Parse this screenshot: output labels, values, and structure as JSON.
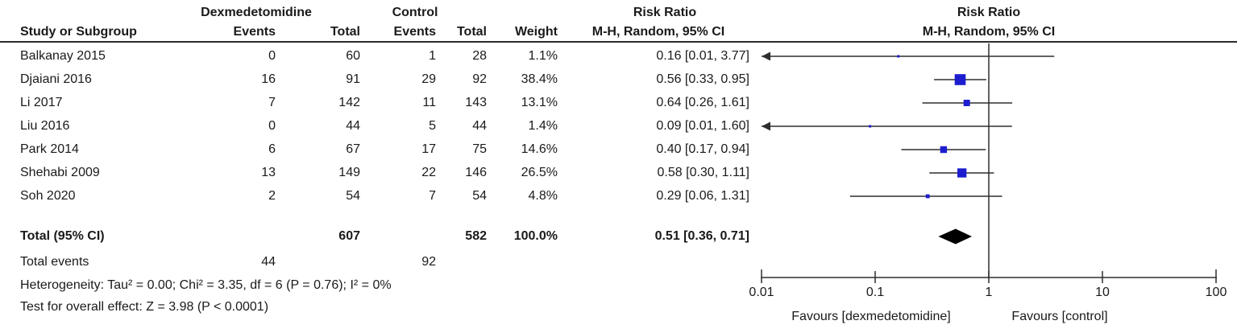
{
  "header": {
    "group_dex": "Dexmedetomidine",
    "group_ctrl": "Control",
    "risk_ratio_text_col": "Risk Ratio",
    "risk_ratio_plot_col": "Risk Ratio",
    "study": "Study or Subgroup",
    "events1": "Events",
    "total1": "Total",
    "events2": "Events",
    "total2": "Total",
    "weight": "Weight",
    "mh_text_col": "M-H, Random, 95% CI",
    "mh_plot_col": "M-H, Random, 95% CI"
  },
  "rows": [
    {
      "study": "Balkanay 2015",
      "e1": "0",
      "t1": "60",
      "e2": "1",
      "t2": "28",
      "weight": "1.1%",
      "ci_text": "0.16 [0.01, 3.77]"
    },
    {
      "study": "Djaiani 2016",
      "e1": "16",
      "t1": "91",
      "e2": "29",
      "t2": "92",
      "weight": "38.4%",
      "ci_text": "0.56 [0.33, 0.95]"
    },
    {
      "study": "Li 2017",
      "e1": "7",
      "t1": "142",
      "e2": "11",
      "t2": "143",
      "weight": "13.1%",
      "ci_text": "0.64 [0.26, 1.61]"
    },
    {
      "study": "Liu 2016",
      "e1": "0",
      "t1": "44",
      "e2": "5",
      "t2": "44",
      "weight": "1.4%",
      "ci_text": "0.09 [0.01, 1.60]"
    },
    {
      "study": "Park 2014",
      "e1": "6",
      "t1": "67",
      "e2": "17",
      "t2": "75",
      "weight": "14.6%",
      "ci_text": "0.40 [0.17, 0.94]"
    },
    {
      "study": "Shehabi 2009",
      "e1": "13",
      "t1": "149",
      "e2": "22",
      "t2": "146",
      "weight": "26.5%",
      "ci_text": "0.58 [0.30, 1.11]"
    },
    {
      "study": "Soh 2020",
      "e1": "2",
      "t1": "54",
      "e2": "7",
      "t2": "54",
      "weight": "4.8%",
      "ci_text": "0.29 [0.06, 1.31]"
    }
  ],
  "total_row": {
    "label": "Total (95% CI)",
    "t1": "607",
    "t2": "582",
    "weight": "100.0%",
    "ci_text": "0.51 [0.36, 0.71]"
  },
  "total_events": {
    "label": "Total events",
    "e1": "44",
    "e2": "92"
  },
  "footer": {
    "heterogeneity": "Heterogeneity: Tau² = 0.00; Chi² = 3.35, df = 6 (P = 0.76); I² = 0%",
    "overall_effect": "Test for overall effect: Z = 3.98 (P < 0.0001)"
  },
  "chart_data": {
    "type": "forest",
    "effect_measure": "Risk Ratio, M-H, Random, 95% CI",
    "x_axis": {
      "scale": "log",
      "ticks": [
        0.01,
        0.1,
        1,
        10,
        100
      ],
      "tick_labels": [
        "0.01",
        "0.1",
        "1",
        "10",
        "100"
      ],
      "reference_line": 1,
      "favours_left": "Favours [dexmedetomidine]",
      "favours_right": "Favours [control]"
    },
    "studies": [
      {
        "name": "Balkanay 2015",
        "rr": 0.16,
        "ci": [
          0.01,
          3.77
        ],
        "weight_pct": 1.1,
        "arrow_low": true
      },
      {
        "name": "Djaiani 2016",
        "rr": 0.56,
        "ci": [
          0.33,
          0.95
        ],
        "weight_pct": 38.4,
        "arrow_low": false
      },
      {
        "name": "Li 2017",
        "rr": 0.64,
        "ci": [
          0.26,
          1.61
        ],
        "weight_pct": 13.1,
        "arrow_low": false
      },
      {
        "name": "Liu 2016",
        "rr": 0.09,
        "ci": [
          0.01,
          1.6
        ],
        "weight_pct": 1.4,
        "arrow_low": true
      },
      {
        "name": "Park 2014",
        "rr": 0.4,
        "ci": [
          0.17,
          0.94
        ],
        "weight_pct": 14.6,
        "arrow_low": false
      },
      {
        "name": "Shehabi 2009",
        "rr": 0.58,
        "ci": [
          0.3,
          1.11
        ],
        "weight_pct": 26.5,
        "arrow_low": false
      },
      {
        "name": "Soh 2020",
        "rr": 0.29,
        "ci": [
          0.06,
          1.31
        ],
        "weight_pct": 4.8,
        "arrow_low": false
      }
    ],
    "total": {
      "name": "Total (95% CI)",
      "rr": 0.51,
      "ci": [
        0.36,
        0.71
      ]
    },
    "colors": {
      "marker": "#1d1dcf",
      "line": "#2e2e2e",
      "diamond": "#000000"
    }
  }
}
